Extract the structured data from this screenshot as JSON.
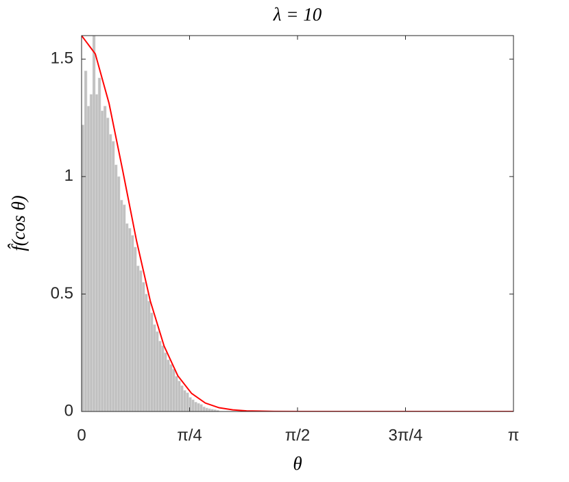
{
  "chart_data": {
    "type": "histogram",
    "title": "λ = 10",
    "x_label": "θ",
    "y_label": "f̂(cos θ)",
    "color": "#c0c0c0",
    "bins": [
      0,
      0.02,
      0.04,
      0.06,
      0.08,
      0.1,
      0.12,
      0.14,
      0.16,
      0.18,
      0.2,
      0.22,
      0.24,
      0.26,
      0.28,
      0.3,
      0.32,
      0.34,
      0.36,
      0.38,
      0.4,
      0.42,
      0.44,
      0.46,
      0.48,
      0.5,
      0.52,
      0.54,
      0.56,
      0.58,
      0.6,
      0.62,
      0.64,
      0.66,
      0.68,
      0.7,
      0.72,
      0.74,
      0.76,
      0.78,
      0.8,
      0.82,
      0.84,
      0.86,
      0.88,
      0.9,
      0.92,
      0.94,
      0.96,
      0.98,
      1.0
    ],
    "values": [
      1.22,
      1.45,
      1.3,
      1.35,
      1.6,
      1.35,
      1.42,
      1.28,
      1.3,
      1.25,
      1.18,
      1.15,
      1.05,
      1.0,
      0.9,
      0.88,
      0.8,
      0.78,
      0.75,
      0.7,
      0.62,
      0.6,
      0.55,
      0.5,
      0.47,
      0.42,
      0.37,
      0.34,
      0.3,
      0.28,
      0.25,
      0.22,
      0.2,
      0.18,
      0.15,
      0.13,
      0.11,
      0.09,
      0.08,
      0.06,
      0.05,
      0.04,
      0.035,
      0.03,
      0.02,
      0.015,
      0.012,
      0.01,
      0.008,
      0.005
    ],
    "overlay": {
      "type": "line",
      "color": "#ff0000",
      "x": [
        0,
        0.1,
        0.2,
        0.3,
        0.4,
        0.5,
        0.6,
        0.7,
        0.8,
        0.9,
        1.0,
        1.1,
        1.2,
        1.4,
        1.6,
        2.0,
        2.5,
        3.1416
      ],
      "values": [
        1.6,
        1.522,
        1.311,
        1.023,
        0.726,
        0.47,
        0.279,
        0.152,
        0.077,
        0.036,
        0.016,
        0.0068,
        0.0027,
        0.0004,
        0,
        0,
        0,
        0
      ]
    },
    "xlim": [
      0,
      3.1416
    ],
    "ylim": [
      0,
      1.6
    ],
    "xticks": [
      0,
      {
        "value": 0.7854,
        "label": "π/4"
      },
      {
        "value": 1.5708,
        "label": "π/2"
      },
      {
        "value": 2.3562,
        "label": "3π/4"
      },
      {
        "value": 3.1416,
        "label": "π"
      }
    ],
    "yticks": [
      0,
      0.5,
      1,
      1.5
    ],
    "grid": false
  }
}
